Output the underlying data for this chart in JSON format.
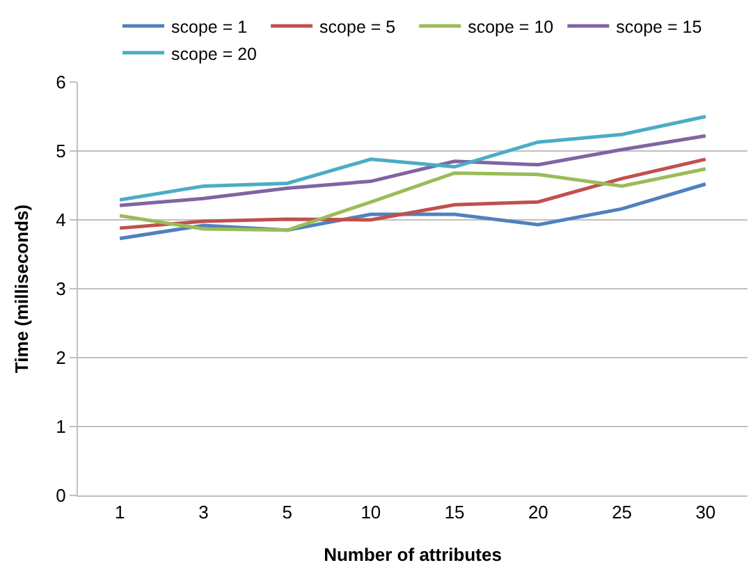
{
  "chart_data": {
    "type": "line",
    "xlabel": "Number of attributes",
    "ylabel": "Time (milliseconds)",
    "categories": [
      "1",
      "3",
      "5",
      "10",
      "15",
      "20",
      "25",
      "30"
    ],
    "series": [
      {
        "name": "scope = 1",
        "color": "#4f81bd",
        "values": [
          3.73,
          3.92,
          3.85,
          4.08,
          4.08,
          3.93,
          4.16,
          4.52
        ]
      },
      {
        "name": "scope = 5",
        "color": "#c0504d",
        "values": [
          3.88,
          3.98,
          4.01,
          4.0,
          4.22,
          4.26,
          4.6,
          4.88
        ]
      },
      {
        "name": "scope = 10",
        "color": "#9bbb59",
        "values": [
          4.06,
          3.87,
          3.85,
          4.26,
          4.68,
          4.66,
          4.49,
          4.74
        ]
      },
      {
        "name": "scope = 15",
        "color": "#8064a2",
        "values": [
          4.21,
          4.31,
          4.46,
          4.56,
          4.85,
          4.8,
          5.02,
          5.22
        ]
      },
      {
        "name": "scope = 20",
        "color": "#4bacc6",
        "values": [
          4.29,
          4.49,
          4.53,
          4.88,
          4.77,
          5.13,
          5.24,
          5.5
        ]
      }
    ],
    "ylim": [
      0,
      6
    ],
    "yticks": [
      0,
      1,
      2,
      3,
      4,
      5,
      6
    ],
    "grid": "y",
    "legend": "top",
    "marker": "none",
    "line_style": "solid"
  }
}
